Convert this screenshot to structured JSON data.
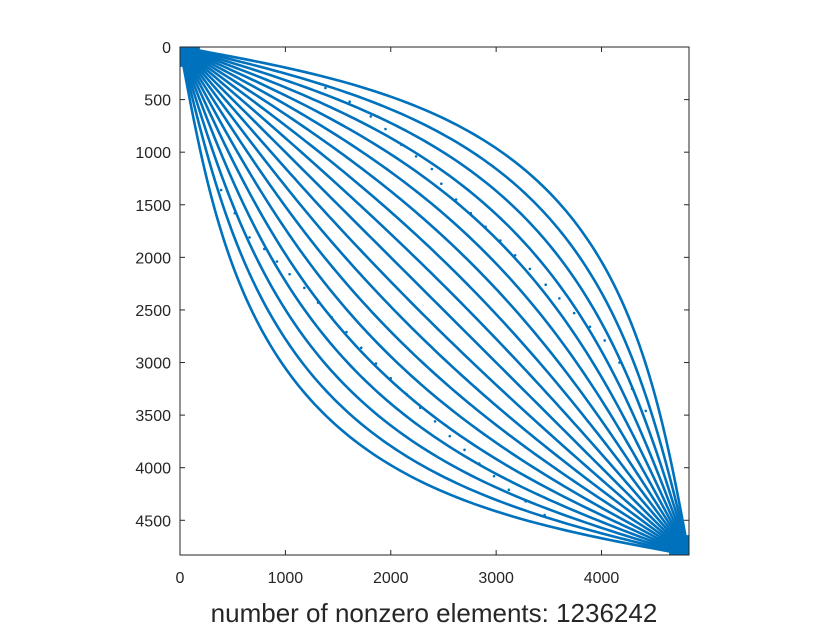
{
  "chart_data": {
    "type": "spy",
    "xlabel": "number of nonzero elements: 1236242",
    "ylabel": "",
    "title": "",
    "xlim": [
      0,
      4830
    ],
    "ylim": [
      0,
      4830
    ],
    "y_reversed": true,
    "x_ticks": [
      0,
      1000,
      2000,
      3000,
      4000
    ],
    "y_ticks": [
      0,
      500,
      1000,
      1500,
      2000,
      2500,
      3000,
      3500,
      4000,
      4500
    ],
    "x_tick_labels": [
      "0",
      "1000",
      "2000",
      "3000",
      "4000"
    ],
    "y_tick_labels": [
      "0",
      "500",
      "1000",
      "1500",
      "2000",
      "2500",
      "3000",
      "3500",
      "4000",
      "4500"
    ],
    "marker_color": "#0072BD",
    "grid": false,
    "matrix_size": 4830,
    "nnz": 1236242,
    "band_count": 19,
    "band_offset_max": 1500,
    "isolated_points_upper": [
      [
        1380,
        390
      ],
      [
        1610,
        520
      ],
      [
        1810,
        660
      ],
      [
        1950,
        780
      ],
      [
        2100,
        930
      ],
      [
        2240,
        1040
      ],
      [
        2390,
        1160
      ],
      [
        2480,
        1300
      ],
      [
        2620,
        1450
      ],
      [
        2760,
        1580
      ],
      [
        2900,
        1710
      ],
      [
        3040,
        1840
      ],
      [
        3180,
        1980
      ],
      [
        3320,
        2110
      ],
      [
        3470,
        2260
      ],
      [
        3600,
        2390
      ],
      [
        3740,
        2530
      ],
      [
        3890,
        2660
      ],
      [
        4030,
        2790
      ],
      [
        4170,
        3000
      ],
      [
        4290,
        3250
      ],
      [
        4420,
        3460
      ]
    ],
    "isolated_points_lower": [
      [
        390,
        1360
      ],
      [
        520,
        1580
      ],
      [
        660,
        1810
      ],
      [
        800,
        1920
      ],
      [
        920,
        2040
      ],
      [
        1040,
        2160
      ],
      [
        1180,
        2290
      ],
      [
        1310,
        2430
      ],
      [
        1440,
        2570
      ],
      [
        1580,
        2710
      ],
      [
        1720,
        2860
      ],
      [
        1860,
        3010
      ],
      [
        2000,
        3150
      ],
      [
        2150,
        3300
      ],
      [
        2280,
        3430
      ],
      [
        2420,
        3560
      ],
      [
        2560,
        3700
      ],
      [
        2700,
        3830
      ],
      [
        2840,
        3960
      ],
      [
        2980,
        4080
      ],
      [
        3120,
        4210
      ],
      [
        3280,
        4320
      ],
      [
        3460,
        4450
      ]
    ]
  }
}
